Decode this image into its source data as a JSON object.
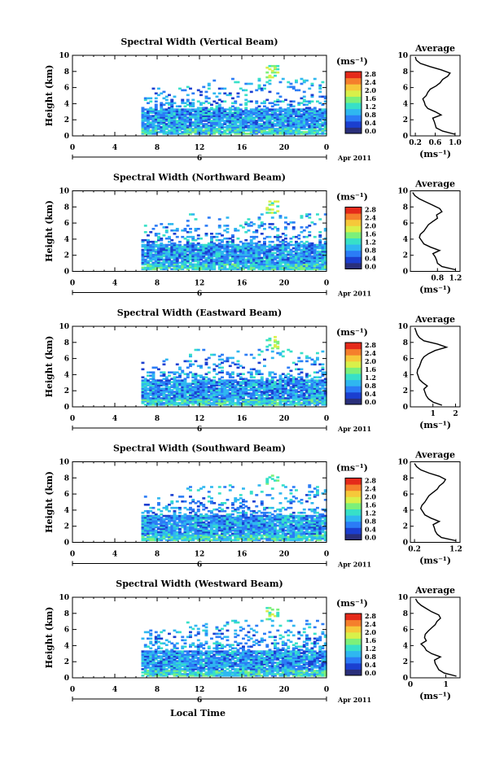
{
  "figure": {
    "date_label": "Apr 2011",
    "xlabel": "Local Time",
    "ylabel": "Height (km)",
    "colorbar_unit_label": "(ms⁻¹)",
    "profile_title": "Average",
    "profile_xlabel": "(ms⁻¹)",
    "colorbar_ticks": [
      "2.8",
      "2.4",
      "2.0",
      "1.6",
      "1.2",
      "0.8",
      "0.4",
      "0.0"
    ],
    "colormap": [
      "#2a2f7a",
      "#1b3fd0",
      "#2b7cf6",
      "#2fb7f0",
      "#37e0c8",
      "#7cf07a",
      "#d9f04a",
      "#f6c83a",
      "#f57f2c",
      "#e52a1a"
    ]
  },
  "chart_data": [
    {
      "type": "heatmap",
      "title": "Spectral Width (Vertical Beam)",
      "xlabel": "Local Time",
      "ylabel": "Height (km)",
      "x_ticks": [
        "0",
        "4",
        "8",
        "12",
        "16",
        "20",
        "0"
      ],
      "x_range": [
        0,
        24
      ],
      "day_label": "6",
      "y_ticks": [
        "10",
        "8",
        "6",
        "4",
        "2",
        "0"
      ],
      "y_range": [
        0,
        10
      ],
      "clim": [
        0,
        2.8
      ],
      "unit": "(ms⁻¹)",
      "profile": {
        "title": "Average",
        "xlabel": "(ms⁻¹)",
        "x_ticks": [
          "0.2",
          "0.6",
          "1.0"
        ],
        "x_range": [
          0.1,
          1.1
        ],
        "heights": [
          0.2,
          0.6,
          1.0,
          1.4,
          1.8,
          2.2,
          2.6,
          3.0,
          3.4,
          3.8,
          4.2,
          4.6,
          5.0,
          5.4,
          5.8,
          6.2,
          6.6,
          7.0,
          7.4,
          7.8,
          8.2,
          8.6,
          9.0,
          9.4,
          9.8
        ],
        "values": [
          1.0,
          0.75,
          0.62,
          0.6,
          0.58,
          0.55,
          0.72,
          0.6,
          0.45,
          0.4,
          0.38,
          0.35,
          0.42,
          0.45,
          0.5,
          0.62,
          0.7,
          0.75,
          0.85,
          0.9,
          0.72,
          0.5,
          0.3,
          0.22,
          0.2
        ]
      }
    },
    {
      "type": "heatmap",
      "title": "Spectral Width (Northward Beam)",
      "xlabel": "Local Time",
      "ylabel": "Height (km)",
      "x_ticks": [
        "0",
        "4",
        "8",
        "12",
        "16",
        "20",
        "0"
      ],
      "x_range": [
        0,
        24
      ],
      "day_label": "6",
      "y_ticks": [
        "10",
        "8",
        "6",
        "4",
        "2",
        "0"
      ],
      "y_range": [
        0,
        10
      ],
      "clim": [
        0,
        2.8
      ],
      "unit": "(ms⁻¹)",
      "profile": {
        "title": "Average",
        "xlabel": "(ms⁻¹)",
        "x_ticks": [
          "0.8",
          "1.2"
        ],
        "x_range": [
          0.2,
          1.3
        ],
        "heights": [
          0.2,
          0.6,
          1.0,
          1.4,
          1.8,
          2.2,
          2.6,
          3.0,
          3.4,
          3.8,
          4.2,
          4.6,
          5.0,
          5.4,
          5.8,
          6.2,
          6.6,
          7.0,
          7.4,
          7.8,
          8.2,
          8.6,
          9.0,
          9.4,
          9.8
        ],
        "values": [
          1.2,
          0.9,
          0.8,
          0.78,
          0.75,
          0.7,
          0.85,
          0.65,
          0.5,
          0.45,
          0.4,
          0.42,
          0.5,
          0.55,
          0.6,
          0.7,
          0.8,
          0.78,
          0.9,
          0.85,
          0.7,
          0.55,
          0.4,
          0.3,
          0.25
        ]
      }
    },
    {
      "type": "heatmap",
      "title": "Spectral Width (Eastward Beam)",
      "xlabel": "Local Time",
      "ylabel": "Height (km)",
      "x_ticks": [
        "0",
        "4",
        "8",
        "12",
        "16",
        "20",
        "0"
      ],
      "x_range": [
        0,
        24
      ],
      "day_label": "6",
      "y_ticks": [
        "10",
        "8",
        "6",
        "4",
        "2",
        "0"
      ],
      "y_range": [
        0,
        10
      ],
      "clim": [
        0,
        2.8
      ],
      "unit": "(ms⁻¹)",
      "profile": {
        "title": "Average",
        "xlabel": "(ms⁻¹)",
        "x_ticks": [
          "1",
          "2"
        ],
        "x_range": [
          0,
          2.2
        ],
        "heights": [
          0.2,
          0.6,
          1.0,
          1.4,
          1.8,
          2.2,
          2.6,
          3.0,
          3.4,
          3.8,
          4.2,
          4.6,
          5.0,
          5.4,
          5.8,
          6.2,
          6.6,
          7.0,
          7.4,
          7.8,
          8.2,
          8.6,
          9.0,
          9.4,
          9.8
        ],
        "values": [
          1.4,
          1.0,
          0.8,
          0.7,
          0.65,
          0.6,
          0.75,
          0.55,
          0.4,
          0.35,
          0.3,
          0.32,
          0.4,
          0.45,
          0.5,
          0.6,
          0.8,
          1.1,
          1.6,
          1.2,
          0.6,
          0.4,
          0.3,
          0.25,
          0.2
        ]
      }
    },
    {
      "type": "heatmap",
      "title": "Spectral Width (Southward Beam)",
      "xlabel": "Local Time",
      "ylabel": "Height (km)",
      "x_ticks": [
        "0",
        "4",
        "8",
        "12",
        "16",
        "20",
        "0"
      ],
      "x_range": [
        0,
        24
      ],
      "day_label": "6",
      "y_ticks": [
        "10",
        "8",
        "6",
        "4",
        "2",
        "0"
      ],
      "y_range": [
        0,
        10
      ],
      "clim": [
        0,
        2.8
      ],
      "unit": "(ms⁻¹)",
      "profile": {
        "title": "Average",
        "xlabel": "(ms⁻¹)",
        "x_ticks": [
          "0.2",
          "1.2"
        ],
        "x_range": [
          0.1,
          1.3
        ],
        "heights": [
          0.2,
          0.6,
          1.0,
          1.4,
          1.8,
          2.2,
          2.6,
          3.0,
          3.4,
          3.8,
          4.2,
          4.6,
          5.0,
          5.4,
          5.8,
          6.2,
          6.6,
          7.0,
          7.4,
          7.8,
          8.2,
          8.6,
          9.0,
          9.4,
          9.8
        ],
        "values": [
          1.2,
          0.85,
          0.75,
          0.7,
          0.68,
          0.65,
          0.8,
          0.6,
          0.45,
          0.4,
          0.35,
          0.38,
          0.45,
          0.5,
          0.55,
          0.65,
          0.75,
          0.8,
          0.9,
          0.95,
          0.8,
          0.55,
          0.35,
          0.25,
          0.2
        ]
      }
    },
    {
      "type": "heatmap",
      "title": "Spectral Width (Westward Beam)",
      "xlabel": "Local Time",
      "ylabel": "Height (km)",
      "x_ticks": [
        "0",
        "4",
        "8",
        "12",
        "16",
        "20",
        "0"
      ],
      "x_range": [
        0,
        24
      ],
      "day_label": "6",
      "y_ticks": [
        "10",
        "8",
        "6",
        "4",
        "2",
        "0"
      ],
      "y_range": [
        0,
        10
      ],
      "clim": [
        0,
        2.8
      ],
      "unit": "(ms⁻¹)",
      "profile": {
        "title": "Average",
        "xlabel": "(ms⁻¹)",
        "x_ticks": [
          "0",
          "1"
        ],
        "x_range": [
          0,
          1.4
        ],
        "heights": [
          0.2,
          0.6,
          1.0,
          1.4,
          1.8,
          2.2,
          2.6,
          3.0,
          3.4,
          3.8,
          4.2,
          4.6,
          5.0,
          5.4,
          5.8,
          6.2,
          6.6,
          7.0,
          7.4,
          7.8,
          8.2,
          8.6,
          9.0,
          9.4,
          9.8
        ],
        "values": [
          1.3,
          0.95,
          0.8,
          0.75,
          0.7,
          0.68,
          0.85,
          0.6,
          0.45,
          0.4,
          0.3,
          0.45,
          0.4,
          0.42,
          0.5,
          0.6,
          0.7,
          0.75,
          0.85,
          0.8,
          0.6,
          0.45,
          0.3,
          0.2,
          0.15
        ]
      }
    }
  ]
}
